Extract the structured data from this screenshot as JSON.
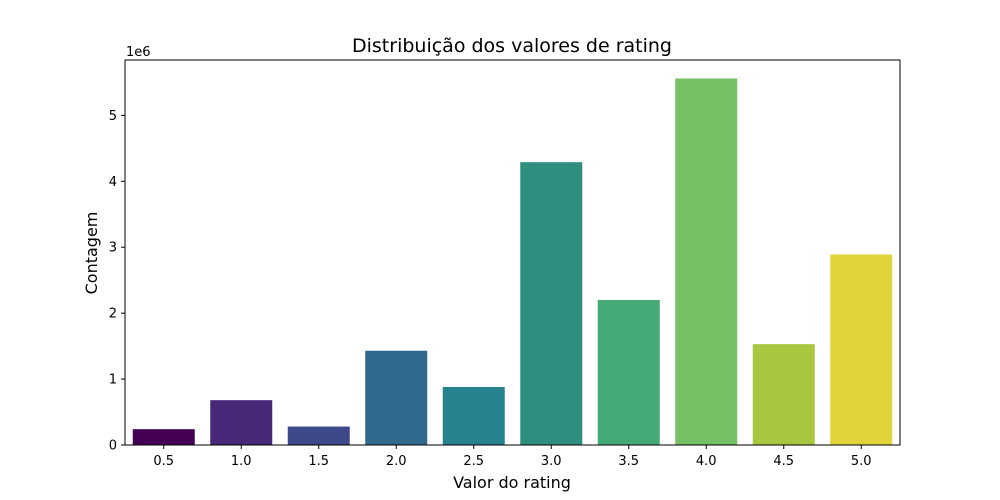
{
  "chart_data": {
    "type": "bar",
    "title": "Distribuição dos valores de rating",
    "xlabel": "Valor do rating",
    "ylabel": "Contagem",
    "y_offset_label": "1e6",
    "categories": [
      "0.5",
      "1.0",
      "1.5",
      "2.0",
      "2.5",
      "3.0",
      "3.5",
      "4.0",
      "4.5",
      "5.0"
    ],
    "values": [
      240000,
      680000,
      280000,
      1430000,
      880000,
      4290000,
      2200000,
      5560000,
      1530000,
      2890000
    ],
    "colors": [
      "#440154",
      "#482878",
      "#3e4989",
      "#31688e",
      "#26828e",
      "#2e8f7e",
      "#44aa75",
      "#75bf65",
      "#a8c640",
      "#e1d33b"
    ],
    "ylim": [
      0,
      5840000
    ],
    "yticks": [
      0,
      1000000,
      2000000,
      3000000,
      4000000,
      5000000
    ],
    "ytick_labels": [
      "0",
      "1",
      "2",
      "3",
      "4",
      "5"
    ],
    "grid": false,
    "legend": "none"
  }
}
